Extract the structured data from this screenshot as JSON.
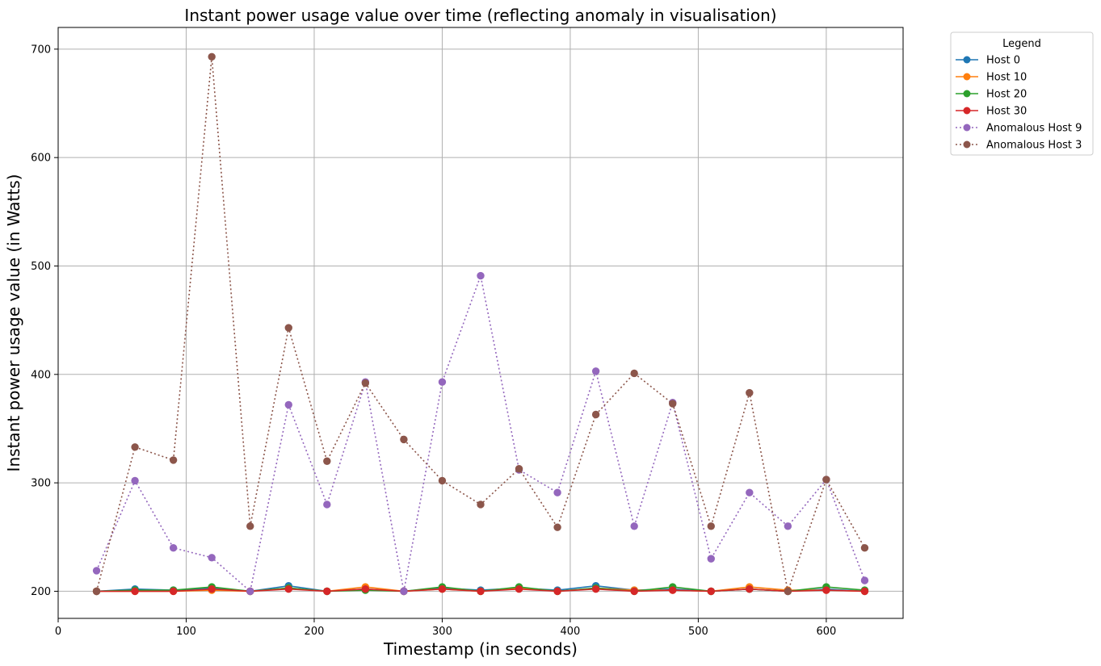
{
  "chart_data": {
    "type": "line",
    "title": "Instant power usage value over time (reflecting anomaly in visualisation)",
    "xlabel": "Timestamp (in seconds)",
    "ylabel": "Instant power usage value (in Watts)",
    "xlim": [
      0,
      660
    ],
    "ylim": [
      175,
      720
    ],
    "xticks": [
      0,
      100,
      200,
      300,
      400,
      500,
      600
    ],
    "yticks": [
      200,
      300,
      400,
      500,
      600,
      700
    ],
    "grid": true,
    "legend": {
      "title": "Legend",
      "placement": "outside-top-right"
    },
    "x": [
      30,
      60,
      90,
      120,
      150,
      180,
      210,
      240,
      270,
      300,
      330,
      360,
      390,
      420,
      450,
      480,
      510,
      540,
      570,
      600,
      630
    ],
    "series": [
      {
        "name": "Host 0",
        "color": "#1f77b4",
        "style": "solid",
        "values": [
          200,
          202,
          201,
          203,
          200,
          205,
          200,
          202,
          200,
          203,
          201,
          203,
          201,
          205,
          201,
          202,
          200,
          202,
          200,
          202,
          200
        ]
      },
      {
        "name": "Host 10",
        "color": "#ff7f0e",
        "style": "solid",
        "values": [
          200,
          200,
          200,
          201,
          200,
          203,
          200,
          204,
          200,
          202,
          200,
          203,
          200,
          203,
          201,
          201,
          200,
          204,
          201,
          201,
          200
        ]
      },
      {
        "name": "Host 20",
        "color": "#2ca02c",
        "style": "solid",
        "values": [
          200,
          201,
          201,
          204,
          200,
          203,
          200,
          201,
          200,
          204,
          200,
          204,
          200,
          203,
          200,
          204,
          200,
          202,
          200,
          204,
          201
        ]
      },
      {
        "name": "Host 30",
        "color": "#d62728",
        "style": "solid",
        "values": [
          200,
          200,
          200,
          202,
          200,
          202,
          200,
          202,
          200,
          202,
          200,
          202,
          200,
          202,
          200,
          201,
          200,
          202,
          200,
          201,
          200
        ]
      },
      {
        "name": "Anomalous Host 9",
        "color": "#9467bd",
        "style": "dotted",
        "values": [
          219,
          302,
          240,
          231,
          200,
          372,
          280,
          393,
          200,
          393,
          491,
          312,
          291,
          403,
          260,
          374,
          230,
          291,
          260,
          303,
          210
        ]
      },
      {
        "name": "Anomalous Host 3",
        "color": "#8c564b",
        "style": "dotted",
        "values": [
          200,
          333,
          321,
          693,
          260,
          443,
          320,
          392,
          340,
          302,
          280,
          313,
          259,
          363,
          401,
          373,
          260,
          383,
          200,
          303,
          240
        ]
      }
    ]
  }
}
